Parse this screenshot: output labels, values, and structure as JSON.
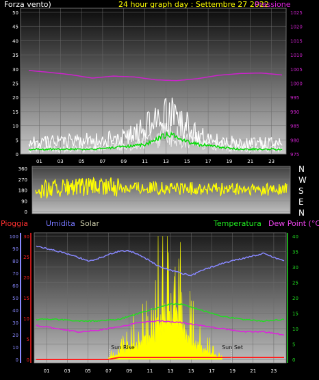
{
  "header": {
    "wind_label": "Forza vento)",
    "title": "24 hour graph day : Settembre 27 2022",
    "pressure_label": "Pressione"
  },
  "bottom_legend": {
    "rain": "Pioggia",
    "humidity": "Umidita",
    "solar": "Solar",
    "temperature": "Temperatura",
    "dewpoint": "Dew Point (°C)"
  },
  "compass": [
    "N",
    "W",
    "S",
    "E",
    "N"
  ],
  "colors": {
    "wind_speed": "#ffffff",
    "wind_gust": "#ffffff",
    "wind_avg": "#00dd00",
    "pressure": "#cc22cc",
    "direction": "#ffff00",
    "rain": "#ff2020",
    "humidity": "#8888ff",
    "solar": "#ffff00",
    "temperature": "#22dd22",
    "dewpoint": "#dd22dd",
    "title": "#ffff00",
    "rain_label": "#ff3030",
    "humidity_label": "#7777ff",
    "solar_label": "#ccccaa",
    "temp_label": "#22ee22",
    "dew_label": "#ee44ee"
  },
  "chart_data": [
    {
      "type": "line",
      "name": "wind-pressure",
      "x_ticks": [
        "01",
        "03",
        "05",
        "07",
        "09",
        "11",
        "13",
        "15",
        "17",
        "19",
        "21",
        "23"
      ],
      "y_left_ticks": [
        0,
        5,
        10,
        15,
        20,
        25,
        30,
        35,
        40,
        45,
        50
      ],
      "y_left_range": [
        0,
        50
      ],
      "y_right_ticks": [
        975,
        980,
        985,
        990,
        995,
        1000,
        1005,
        1010,
        1015,
        1020,
        1025
      ],
      "y_right_range": [
        975,
        1025
      ],
      "pressure": {
        "hours": [
          0,
          2,
          4,
          6,
          8,
          10,
          12,
          14,
          16,
          18,
          20,
          22,
          24
        ],
        "values": [
          1004.5,
          1003.8,
          1003,
          1001.8,
          1002.5,
          1002.2,
          1001.2,
          1000.9,
          1001.6,
          1002.8,
          1003.4,
          1003.6,
          1002.9
        ]
      },
      "wind_speed_profile": {
        "hours": [
          0,
          3,
          6,
          9,
          11,
          12,
          13,
          14,
          15,
          16,
          18,
          20,
          22,
          24
        ],
        "values": [
          2,
          2,
          2,
          3,
          4,
          6,
          8,
          7,
          5,
          4,
          3,
          2,
          2,
          2
        ]
      },
      "wind_gust_profile": {
        "hours": [
          0,
          3,
          6,
          9,
          11,
          12,
          13,
          14,
          15,
          16,
          18,
          20,
          22,
          24
        ],
        "values": [
          4,
          5,
          5,
          6,
          9,
          12,
          14,
          13,
          10,
          7,
          5,
          4,
          4,
          4
        ]
      }
    },
    {
      "type": "scatter",
      "name": "wind-direction",
      "y_ticks": [
        0,
        90,
        180,
        270,
        360
      ],
      "y_range": [
        0,
        360
      ],
      "direction_profile": {
        "hours": [
          0,
          4,
          8,
          12,
          16,
          20,
          24
        ],
        "values": [
          185,
          200,
          205,
          195,
          190,
          180,
          185
        ]
      }
    },
    {
      "type": "line",
      "name": "rain-humidity-solar-temperature",
      "x_ticks": [
        "01",
        "03",
        "05",
        "07",
        "09",
        "11",
        "13",
        "15",
        "17",
        "19",
        "21",
        "23"
      ],
      "y_left_outer_ticks": [
        0,
        10,
        20,
        30,
        40,
        50,
        60,
        70,
        80,
        90,
        100
      ],
      "y_left_inner_ticks": [
        0,
        5,
        10,
        15,
        20,
        25,
        30
      ],
      "y_right_ticks": [
        0,
        5,
        10,
        15,
        20,
        25,
        30,
        35,
        40
      ],
      "humidity_pct": {
        "hours": [
          0,
          2,
          4,
          5,
          6,
          8,
          9,
          10,
          12,
          14,
          15,
          16,
          18,
          20,
          22,
          24
        ],
        "values": [
          92,
          88,
          83,
          80,
          82,
          88,
          88,
          85,
          75,
          70,
          68,
          72,
          78,
          82,
          86,
          80
        ]
      },
      "temperature_c": {
        "hours": [
          0,
          2,
          4,
          6,
          8,
          10,
          12,
          13,
          14,
          16,
          18,
          20,
          22,
          24
        ],
        "values": [
          13,
          13,
          12.5,
          12.5,
          13,
          15,
          17,
          18,
          18,
          16,
          14,
          13,
          12.5,
          13
        ]
      },
      "dewpoint_c": {
        "hours": [
          0,
          2,
          4,
          6,
          8,
          10,
          12,
          14,
          16,
          18,
          20,
          22,
          24
        ],
        "values": [
          11,
          10,
          9,
          9.5,
          10.5,
          12,
          12.5,
          12,
          11,
          10,
          9,
          9,
          8
        ]
      },
      "rain": {
        "hours": [
          0,
          7,
          8,
          24
        ],
        "values": [
          0,
          0,
          0.5,
          0.5
        ]
      },
      "solar_profile": {
        "hours": [
          7,
          8,
          9,
          10,
          11,
          12,
          13,
          14,
          15,
          16,
          17,
          18
        ],
        "values": [
          1,
          3,
          6,
          8,
          12,
          20,
          28,
          18,
          10,
          6,
          3,
          1
        ]
      },
      "annotations": [
        "Sun Rise",
        "Sun Set"
      ]
    }
  ]
}
